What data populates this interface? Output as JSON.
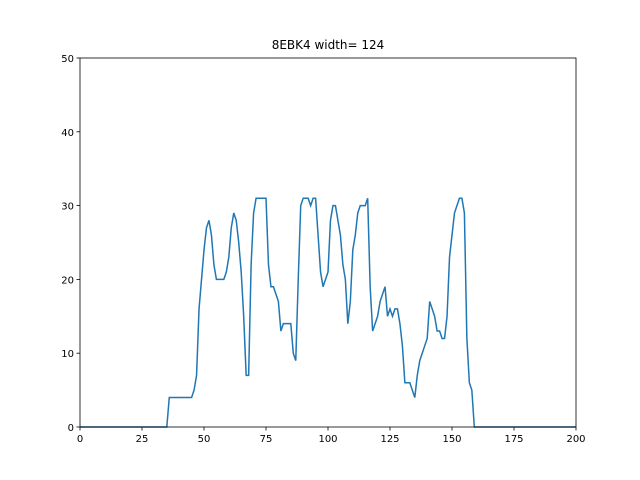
{
  "chart_data": {
    "type": "line",
    "title": "8EBK4 width= 124",
    "x": [
      0,
      35,
      36,
      37,
      38,
      39,
      40,
      41,
      42,
      43,
      44,
      45,
      46,
      47,
      48,
      49,
      50,
      51,
      52,
      53,
      54,
      55,
      56,
      57,
      58,
      59,
      60,
      61,
      62,
      63,
      64,
      65,
      66,
      67,
      68,
      69,
      70,
      71,
      72,
      73,
      74,
      75,
      76,
      77,
      78,
      79,
      80,
      81,
      82,
      83,
      84,
      85,
      86,
      87,
      88,
      89,
      90,
      91,
      92,
      93,
      94,
      95,
      96,
      97,
      98,
      99,
      100,
      101,
      102,
      103,
      104,
      105,
      106,
      107,
      108,
      109,
      110,
      111,
      112,
      113,
      114,
      115,
      116,
      117,
      118,
      119,
      120,
      121,
      122,
      123,
      124,
      125,
      126,
      127,
      128,
      129,
      130,
      131,
      132,
      133,
      134,
      135,
      136,
      137,
      138,
      139,
      140,
      141,
      142,
      143,
      144,
      145,
      146,
      147,
      148,
      149,
      150,
      151,
      152,
      153,
      154,
      155,
      156,
      157,
      158,
      159,
      200
    ],
    "series": [
      {
        "color": "#1f77b4",
        "values": [
          0,
          0,
          4,
          4,
          4,
          4,
          4,
          4,
          4,
          4,
          4,
          4,
          5,
          7,
          16,
          20,
          24,
          27,
          28,
          26,
          22,
          20,
          20,
          20,
          20,
          21,
          23,
          27,
          29,
          28,
          25,
          21,
          15,
          7,
          7,
          22,
          29,
          31,
          31,
          31,
          31,
          31,
          22,
          19,
          19,
          18,
          17,
          13,
          14,
          14,
          14,
          14,
          10,
          9,
          20,
          30,
          31,
          31,
          31,
          30,
          31,
          31,
          26,
          21,
          19,
          20,
          21,
          28,
          30,
          30,
          28,
          26,
          22,
          20,
          14,
          17,
          24,
          26,
          29,
          30,
          30,
          30,
          31,
          19,
          13,
          14,
          15,
          17,
          18,
          19,
          15,
          16,
          15,
          16,
          16,
          14,
          11,
          6,
          6,
          6,
          5,
          4,
          7,
          9,
          10,
          11,
          12,
          17,
          16,
          15,
          13,
          13,
          12,
          12,
          15,
          23,
          26,
          29,
          30,
          31,
          31,
          29,
          12,
          6,
          5,
          0,
          0
        ]
      }
    ],
    "xlim": [
      0,
      200
    ],
    "ylim": [
      0,
      50
    ],
    "xticks": [
      0,
      25,
      50,
      75,
      100,
      125,
      150,
      175,
      200
    ],
    "yticks": [
      0,
      10,
      20,
      30,
      40,
      50
    ]
  }
}
